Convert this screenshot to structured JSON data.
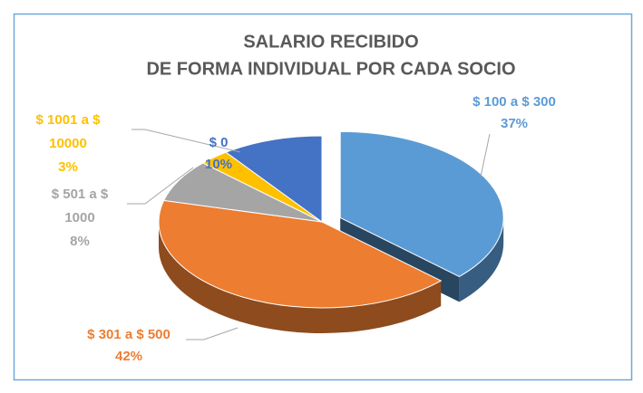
{
  "chart_data": {
    "type": "pie",
    "title": [
      "SALARIO  RECIBIDO",
      "DE FORMA INDIVIDUAL POR CADA SOCIO"
    ],
    "categories": [
      "$ 100 a $ 300",
      "$ 301 a $ 500",
      "$ 501 a $ 1000",
      "$ 1001 a $ 10000",
      "$ 0"
    ],
    "values": [
      37,
      42,
      8,
      3,
      10
    ],
    "value_labels": [
      "37%",
      "42%",
      "8%",
      "3%",
      "10%"
    ],
    "colors": [
      "#5b9bd5",
      "#ed7d31",
      "#a5a5a5",
      "#ffc000",
      "#4472c4"
    ],
    "exploded": [
      true,
      false,
      false,
      false,
      false
    ]
  }
}
